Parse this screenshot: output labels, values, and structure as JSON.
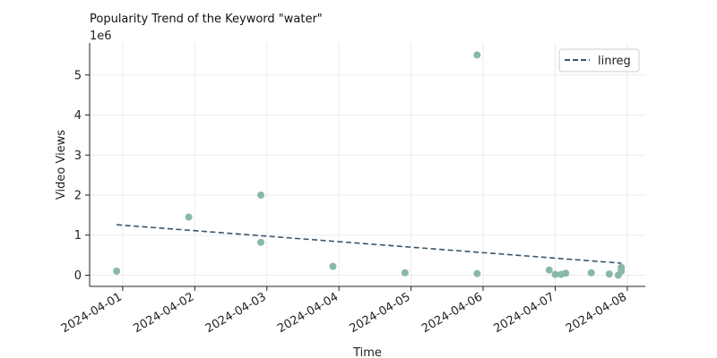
{
  "chart_data": {
    "type": "scatter",
    "title": "Popularity Trend of the Keyword \"water\"",
    "xlabel": "Time",
    "ylabel": "Video Views",
    "y_scale_label": "1e6",
    "x_ticks": [
      "2024-04-01",
      "2024-04-02",
      "2024-04-03",
      "2024-04-04",
      "2024-04-05",
      "2024-04-06",
      "2024-04-07",
      "2024-04-08"
    ],
    "y_ticks": [
      0,
      1,
      2,
      3,
      4,
      5
    ],
    "xlim": [
      "2024-03-31 13:00",
      "2024-04-08 06:00"
    ],
    "ylim": [
      -0.28,
      5.8
    ],
    "grid": true,
    "legend_position": "top-right",
    "colors": {
      "points": "#88b8a8",
      "line": "#3d5566"
    },
    "series": [
      {
        "type": "scatter",
        "points": [
          {
            "x": "2024-03-31 22:00",
            "y": 0.1
          },
          {
            "x": "2024-04-01 22:00",
            "y": 1.45
          },
          {
            "x": "2024-04-02 22:00",
            "y": 2.0
          },
          {
            "x": "2024-04-02 22:00",
            "y": 0.82
          },
          {
            "x": "2024-04-03 22:00",
            "y": 0.22
          },
          {
            "x": "2024-04-04 22:00",
            "y": 0.06
          },
          {
            "x": "2024-04-05 22:00",
            "y": 5.5
          },
          {
            "x": "2024-04-05 22:00",
            "y": 0.04
          },
          {
            "x": "2024-04-06 22:00",
            "y": 0.13
          },
          {
            "x": "2024-04-07 00:00",
            "y": 0.02
          },
          {
            "x": "2024-04-07 02:00",
            "y": 0.02
          },
          {
            "x": "2024-04-07 03:30",
            "y": 0.05
          },
          {
            "x": "2024-04-07 12:00",
            "y": 0.06
          },
          {
            "x": "2024-04-07 18:00",
            "y": 0.03
          },
          {
            "x": "2024-04-07 21:00",
            "y": 0.0
          },
          {
            "x": "2024-04-07 22:00",
            "y": 0.1
          },
          {
            "x": "2024-04-07 22:00",
            "y": 0.15
          },
          {
            "x": "2024-04-07 22:00",
            "y": 0.2
          }
        ]
      },
      {
        "name": "linreg",
        "type": "line",
        "style": "dashed",
        "points": [
          {
            "x": "2024-03-31 22:00",
            "y": 1.26
          },
          {
            "x": "2024-04-07 22:00",
            "y": 0.3
          }
        ]
      }
    ]
  }
}
